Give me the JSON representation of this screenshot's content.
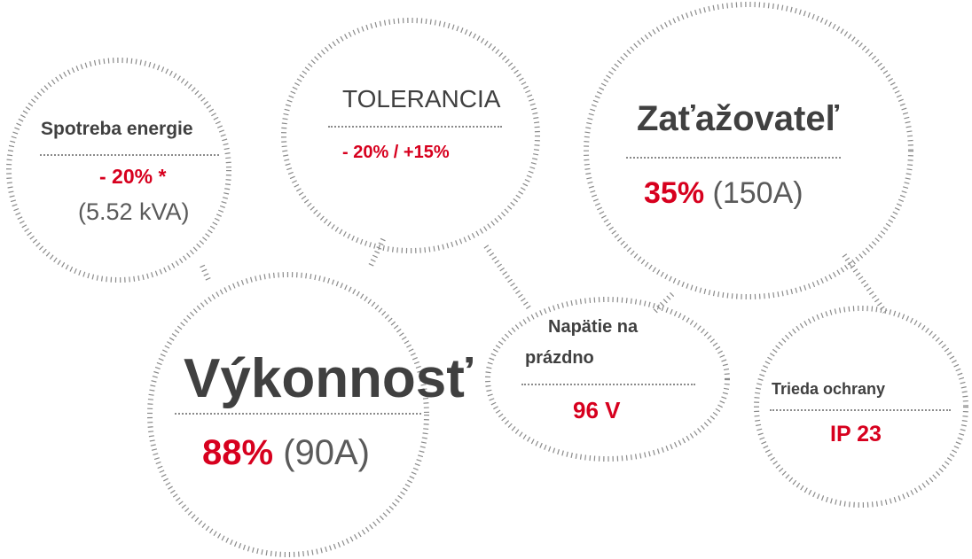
{
  "colors": {
    "accent": "#d7001e",
    "text": "#404040",
    "secondary": "#5a5a5a",
    "dots": "#8a8a8a"
  },
  "bubbles": {
    "spotreba": {
      "title": "Spotreba energie",
      "value": "- 20% *",
      "detail": "(5.52 kVA)"
    },
    "tolerancia": {
      "title": "TOLERANCIA",
      "value": "- 20% / +15%"
    },
    "zatazovatel": {
      "title": "Zaťažovateľ",
      "value": "35%",
      "detail": "(150A)"
    },
    "vykonnost": {
      "title": "Výkonnosť",
      "value": "88%",
      "detail": "(90A)"
    },
    "napatie": {
      "title_line1": "Napätie na",
      "title_line2": "prázdno",
      "value": "96 V"
    },
    "trieda": {
      "title": "Trieda ochrany",
      "value": "IP 23"
    }
  }
}
